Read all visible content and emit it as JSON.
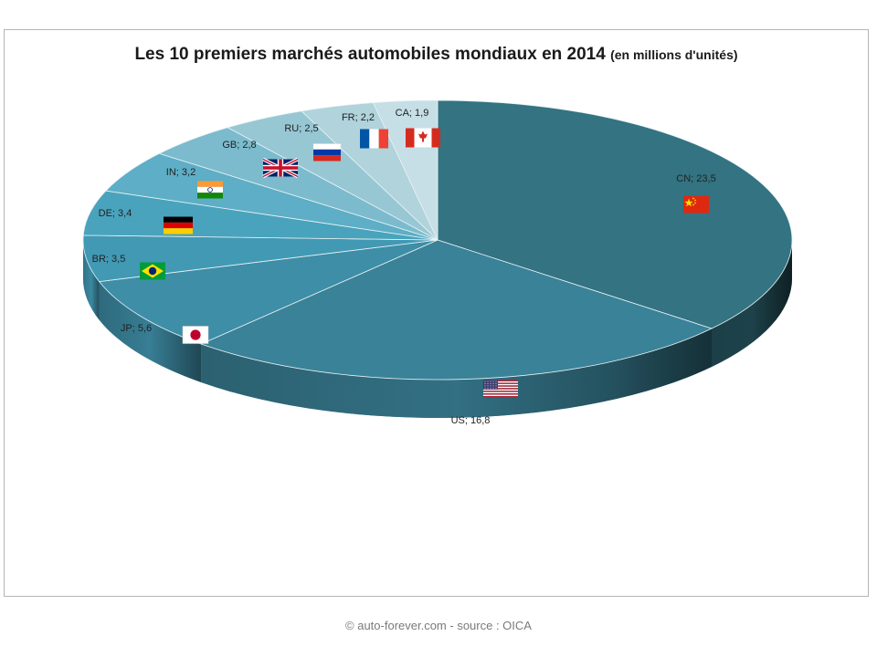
{
  "chart_data": {
    "type": "pie",
    "title": "Les 10 premiers marchés automobiles mondiaux en 2014",
    "subtitle": "(en millions d'unités)",
    "slices": [
      {
        "label": "CN",
        "value": 23.5,
        "value_text": "23,5",
        "color": "#337382",
        "flag": "china-flag"
      },
      {
        "label": "US",
        "value": 16.8,
        "value_text": "16,8",
        "color": "#3a8298",
        "flag": "usa-flag"
      },
      {
        "label": "JP",
        "value": 5.6,
        "value_text": "5,6",
        "color": "#3e8ea7",
        "flag": "japan-flag"
      },
      {
        "label": "BR",
        "value": 3.5,
        "value_text": "3,5",
        "color": "#4299b4",
        "flag": "brazil-flag"
      },
      {
        "label": "DE",
        "value": 3.4,
        "value_text": "3,4",
        "color": "#4aa3bc",
        "flag": "germany-flag"
      },
      {
        "label": "IN",
        "value": 3.2,
        "value_text": "3,2",
        "color": "#5daec6",
        "flag": "india-flag"
      },
      {
        "label": "GB",
        "value": 2.8,
        "value_text": "2,8",
        "color": "#7bbbcd",
        "flag": "uk-flag"
      },
      {
        "label": "RU",
        "value": 2.5,
        "value_text": "2,5",
        "color": "#98c7d4",
        "flag": "russia-flag"
      },
      {
        "label": "FR",
        "value": 2.2,
        "value_text": "2,2",
        "color": "#b0d3dc",
        "flag": "france-flag"
      },
      {
        "label": "CA",
        "value": 1.9,
        "value_text": "1,9",
        "color": "#c6dee5",
        "flag": "canada-flag"
      }
    ],
    "label_separator": "; ",
    "legend": "none"
  },
  "footer": {
    "credit": "© auto-forever.com  -  source : OICA"
  }
}
